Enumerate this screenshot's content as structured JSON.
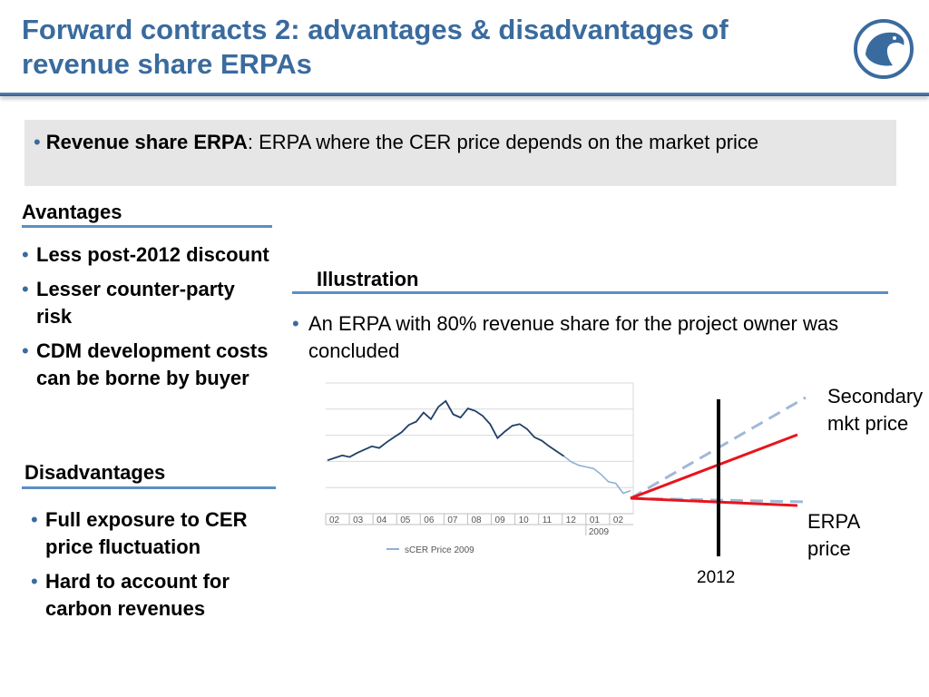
{
  "title": "Forward contracts 2: advantages & disadvantages of revenue share ERPAs",
  "definition": {
    "term": "Revenue share ERPA",
    "text": ": ERPA where the CER price depends on the market price"
  },
  "advantages": {
    "heading": "Avantages",
    "items": [
      "Less post-2012 discount",
      "Lesser counter-party risk",
      "CDM development costs can be borne by buyer"
    ]
  },
  "disadvantages": {
    "heading": "Disadvantages",
    "items": [
      "Full exposure to CER price fluctuation",
      "Hard to account for carbon revenues"
    ]
  },
  "illustration": {
    "heading": "Illustration",
    "text": "An ERPA with 80% revenue share for the project owner was concluded",
    "secondary_label": "Secondary mkt price",
    "erpa_label": "ERPA price",
    "year_label": "2012"
  },
  "chart_data": {
    "type": "line",
    "series": [
      {
        "name": "sCER Price 2009",
        "values": [
          13.6,
          13.9,
          14.2,
          14.0,
          14.5,
          14.9,
          15.3,
          15.1,
          15.8,
          16.4,
          17.0,
          17.9,
          18.3,
          19.4,
          18.6,
          20.1,
          20.8,
          19.2,
          18.8,
          19.9,
          19.6,
          19.0,
          18.0,
          16.3,
          17.1,
          17.8,
          18.0,
          17.4,
          16.4,
          16.0,
          15.3,
          14.7,
          14.1,
          13.4,
          13.0,
          12.8,
          12.6,
          11.9,
          11.0,
          10.8,
          9.6,
          9.9
        ]
      }
    ],
    "x_tick_labels": [
      "02",
      "03",
      "04",
      "05",
      "06",
      "07",
      "08",
      "09",
      "10",
      "11",
      "12",
      "01",
      "02"
    ],
    "x_sub_label": "2009",
    "legend": "bottom",
    "grid": true
  },
  "colors": {
    "title": "#3a6b9e",
    "rule": "#5a8fc4",
    "price_line": "#1f3f66",
    "red_line": "#e8141b",
    "dashed_line": "#9fb9d8"
  }
}
